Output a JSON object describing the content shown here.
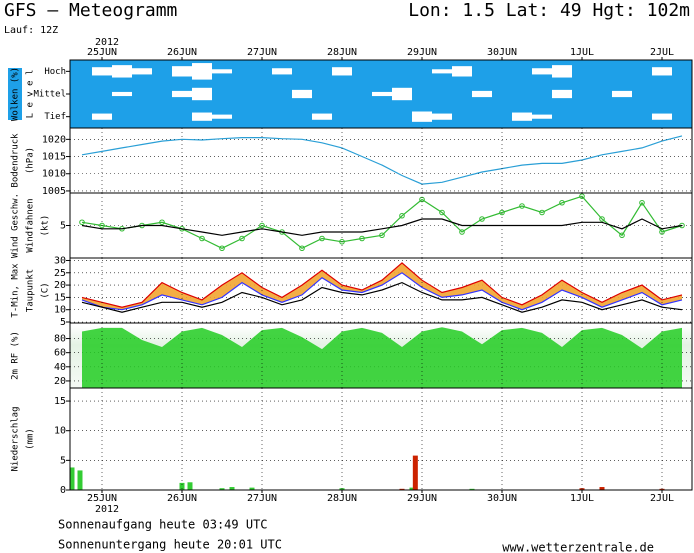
{
  "header": {
    "title": "GFS – Meteogramm",
    "location": "Lon: 1.5 Lat: 49 Hgt: 102m",
    "run": "Lauf: 12Z",
    "year": "2012"
  },
  "time_axis": {
    "xlim": [
      -9.6,
      177
    ],
    "xticks": [
      {
        "value": 0,
        "label": "25JUN"
      },
      {
        "value": 24,
        "label": "26JUN"
      },
      {
        "value": 48,
        "label": "27JUN"
      },
      {
        "value": 72,
        "label": "28JUN"
      },
      {
        "value": 96,
        "label": "29JUN"
      },
      {
        "value": 120,
        "label": "30JUN"
      },
      {
        "value": 144,
        "label": "1JUL"
      },
      {
        "value": 168,
        "label": "2JUL"
      }
    ],
    "x": [
      -6,
      0,
      6,
      12,
      18,
      24,
      30,
      36,
      42,
      48,
      54,
      60,
      66,
      72,
      78,
      84,
      90,
      96,
      102,
      108,
      114,
      120,
      126,
      132,
      138,
      144,
      150,
      156,
      162,
      168,
      174
    ]
  },
  "chart_data": [
    {
      "type": "band",
      "ylabel": [
        "Wolken (%)",
        "L e v e l"
      ],
      "background": "#1ea0e8",
      "series": [
        {
          "name": "Hoch",
          "color": "#ffffff",
          "values": [
            0,
            40,
            60,
            30,
            0,
            50,
            80,
            20,
            0,
            0,
            30,
            0,
            0,
            40,
            0,
            0,
            0,
            0,
            20,
            50,
            0,
            0,
            0,
            30,
            60,
            0,
            0,
            0,
            0,
            40,
            0
          ]
        },
        {
          "name": "Mittel",
          "color": "#ffffff",
          "values": [
            0,
            0,
            20,
            0,
            0,
            30,
            60,
            0,
            0,
            0,
            0,
            40,
            0,
            0,
            0,
            20,
            60,
            0,
            0,
            0,
            30,
            0,
            0,
            0,
            40,
            0,
            0,
            30,
            0,
            0,
            0
          ]
        },
        {
          "name": "Tief",
          "color": "#ffffff",
          "values": [
            0,
            30,
            0,
            0,
            0,
            0,
            40,
            20,
            0,
            0,
            0,
            0,
            30,
            0,
            0,
            0,
            0,
            50,
            30,
            0,
            0,
            0,
            40,
            20,
            0,
            0,
            0,
            0,
            0,
            30,
            0
          ]
        }
      ]
    },
    {
      "type": "line",
      "ylabel": [
        "Bodendruck",
        "(hPa)"
      ],
      "ylim": [
        1004.4,
        1023.3
      ],
      "yticks": [
        1005,
        1010,
        1015,
        1020
      ],
      "grid": true,
      "series": [
        {
          "color": "#2a9fd6",
          "values": [
            1015.5,
            1016.5,
            1017.5,
            1018.5,
            1019.5,
            1020,
            1019.8,
            1020.2,
            1020.5,
            1020.5,
            1020.2,
            1020,
            1019,
            1017.5,
            1015,
            1012.5,
            1009.5,
            1007,
            1007.5,
            1009,
            1010.5,
            1011.5,
            1012.5,
            1013,
            1013,
            1014,
            1015.5,
            1016.5,
            1017.5,
            1019.5,
            1021
          ]
        }
      ]
    },
    {
      "type": "line",
      "ylabel": [
        "Wind Geschw.",
        "Windfahnen",
        "(kt)"
      ],
      "ylabel_colors": [
        "#00aa00",
        "#000000",
        "#000000"
      ],
      "ylim": [
        0,
        10
      ],
      "yticks": [
        5
      ],
      "grid": true,
      "series": [
        {
          "color": "#33bb33",
          "markers": true,
          "values": [
            5.5,
            5,
            4.5,
            5,
            5.5,
            4.5,
            3,
            1.5,
            3,
            5,
            4,
            1.5,
            3,
            2.5,
            3,
            3.5,
            6.5,
            9,
            7,
            4,
            6,
            7,
            8,
            7,
            8.5,
            9.5,
            6,
            3.5,
            8.5,
            4,
            5
          ]
        },
        {
          "color": "#000000",
          "values": [
            5,
            4.5,
            4.5,
            5,
            5,
            4.5,
            4,
            3.5,
            4,
            4.5,
            4,
            3.5,
            4,
            4,
            4,
            4.5,
            5,
            6,
            6,
            5,
            5,
            5,
            5,
            5,
            5,
            5.5,
            5.5,
            4.5,
            6,
            4.5,
            5
          ]
        }
      ]
    },
    {
      "type": "range",
      "ylabel": [
        "T-Min, Max",
        "Taupunkt",
        "(C)"
      ],
      "ylabel_colors": [
        "#2233ee",
        "#000000",
        "#000000"
      ],
      "ylim": [
        4.6,
        31
      ],
      "yticks": [
        5,
        10,
        15,
        20,
        25,
        30
      ],
      "grid": true,
      "fill": "#f2a531",
      "series": [
        {
          "color": "#dd0000",
          "values": [
            15,
            13,
            11,
            13,
            21,
            17,
            14,
            20,
            25,
            19,
            15,
            20,
            26,
            20,
            18,
            22,
            29,
            22,
            17,
            19,
            22,
            15,
            12,
            16,
            22,
            17,
            13,
            17,
            20,
            14,
            16
          ]
        },
        {
          "color": "#3333ff",
          "values": [
            14,
            11,
            10,
            12,
            16,
            14,
            12,
            15,
            21,
            16,
            13,
            16,
            23,
            18,
            17,
            20,
            25,
            19,
            15,
            16,
            18,
            13,
            10,
            13,
            18,
            15,
            11,
            14,
            17,
            12,
            14
          ]
        },
        {
          "color": "#000000",
          "values": [
            13,
            11,
            9,
            11,
            13,
            13,
            11,
            13,
            17,
            15,
            12,
            14,
            19,
            17,
            16,
            18,
            21,
            17,
            14,
            14,
            15,
            12,
            9,
            11,
            14,
            13,
            10,
            12,
            14,
            11,
            10
          ]
        }
      ]
    },
    {
      "type": "area",
      "ylabel": [
        "2m RF (%)"
      ],
      "ylabel_colors": [
        "#00aa00"
      ],
      "ylim": [
        10,
        102
      ],
      "yticks": [
        20,
        40,
        60,
        80
      ],
      "grid": true,
      "series": [
        {
          "color": "#22cc22",
          "values": [
            90,
            95,
            95,
            78,
            68,
            90,
            95,
            85,
            68,
            92,
            95,
            82,
            65,
            90,
            95,
            88,
            68,
            90,
            96,
            90,
            72,
            92,
            95,
            88,
            68,
            92,
            95,
            85,
            66,
            90,
            95
          ]
        }
      ]
    },
    {
      "type": "bar",
      "ylabel": [
        "Niederschlag",
        "(mm)"
      ],
      "ylim": [
        0,
        17.2
      ],
      "yticks": [
        0,
        5,
        10,
        15
      ],
      "grid": true,
      "series": [
        {
          "color": "#33cc33",
          "x": [
            -9,
            -6.6,
            24,
            26.4,
            36,
            39,
            45,
            72,
            93,
            111
          ],
          "values": [
            3.8,
            3.3,
            1.2,
            1.3,
            0.3,
            0.5,
            0.4,
            0.3,
            0.4,
            0.2
          ]
        },
        {
          "color": "#cc2200",
          "x": [
            90,
            94,
            144,
            150,
            168
          ],
          "values": [
            0.2,
            5.8,
            0.3,
            0.5,
            0.2
          ]
        }
      ]
    }
  ],
  "footer": {
    "sunrise": "Sonnenaufgang heute 03:49 UTC",
    "sunset": "Sonnenuntergang heute 20:01 UTC",
    "source": "www.wetterzentrale.de"
  }
}
